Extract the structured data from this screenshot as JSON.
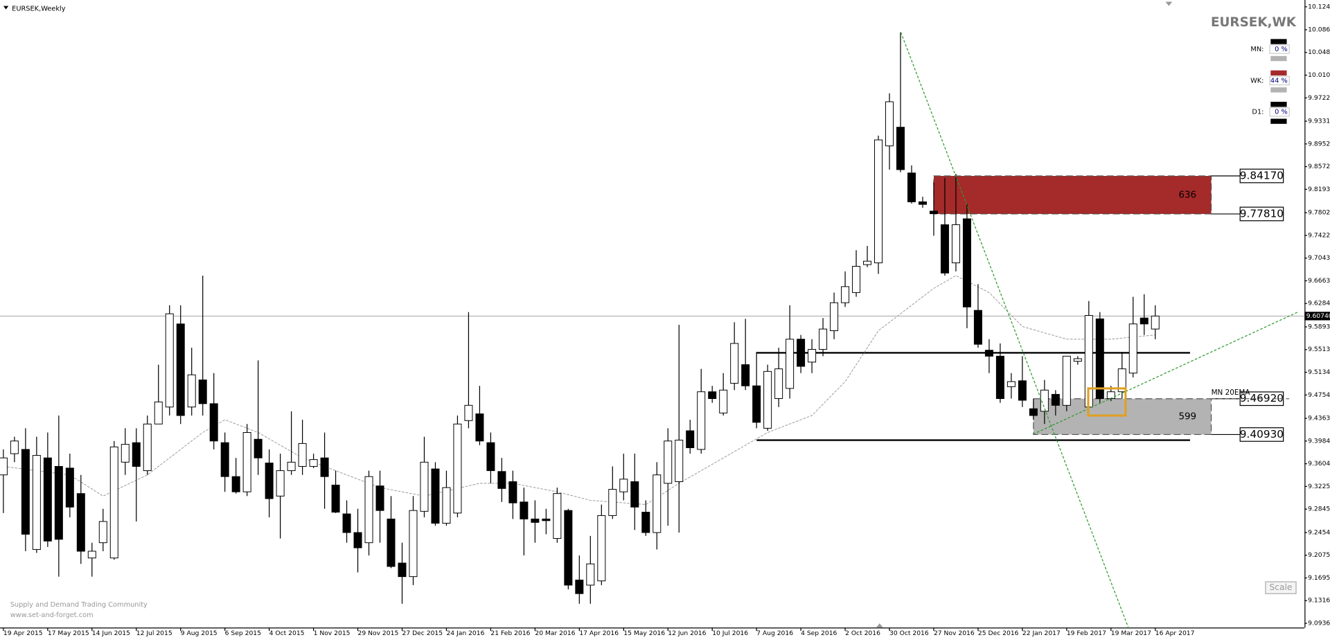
{
  "chart_data": {
    "type": "candlestick",
    "title": "EURSEK,Weekly",
    "symbol_badge": "EURSEK,WK",
    "watermark": [
      "Supply and Demand Trading Community",
      "www.set-and-forget.com"
    ],
    "scale_button": "Scale",
    "categories": [
      "19 Apr 2015",
      null,
      null,
      null,
      "17 May 2015",
      null,
      null,
      null,
      "14 Jun 2015",
      null,
      null,
      null,
      "12 Jul 2015",
      null,
      null,
      null,
      "9 Aug 2015",
      null,
      null,
      null,
      "6 Sep 2015",
      null,
      null,
      null,
      "4 Oct 2015",
      null,
      null,
      null,
      "1 Nov 2015",
      null,
      null,
      null,
      "29 Nov 2015",
      null,
      null,
      null,
      "27 Dec 2015",
      null,
      null,
      null,
      "24 Jan 2016",
      null,
      null,
      null,
      "21 Feb 2016",
      null,
      null,
      null,
      "20 Mar 2016",
      null,
      null,
      null,
      "17 Apr 2016",
      null,
      null,
      null,
      "15 May 2016",
      null,
      null,
      null,
      "12 Jun 2016",
      null,
      null,
      null,
      "10 Jul 2016",
      null,
      null,
      null,
      "7 Aug 2016",
      null,
      null,
      null,
      "4 Sep 2016",
      null,
      null,
      null,
      "2 Oct 2016",
      null,
      null,
      null,
      "30 Oct 2016",
      null,
      null,
      null,
      "27 Nov 2016",
      null,
      null,
      null,
      "25 Dec 2016",
      null,
      null,
      null,
      "22 Jan 2017",
      null,
      null,
      null,
      "19 Feb 2017",
      null,
      null,
      null,
      "19 Mar 2017",
      null,
      null,
      null,
      "16 Apr 2017"
    ],
    "open": [
      9.3418,
      9.3773,
      9.3844,
      9.2171,
      9.3702,
      9.356,
      9.3532,
      9.3106,
      9.2029,
      9.2284,
      9.2029,
      9.3631,
      9.3957,
      9.3489,
      9.4269,
      9.4553,
      9.5942,
      9.4553,
      9.5006,
      9.4609,
      9.3957,
      9.339,
      9.3135,
      9.4014,
      9.3617,
      9.3064,
      9.3489,
      9.356,
      9.356,
      9.3702,
      9.3248,
      9.2766,
      9.2454,
      9.2284,
      9.3234,
      9.2681,
      9.1944,
      9.1717,
      9.2809,
      9.3518,
      9.261,
      9.278,
      9.4326,
      9.4439,
      9.3957,
      9.3475,
      9.3305,
      9.2965,
      9.2681,
      9.2681,
      9.2355,
      9.2823,
      9.166,
      9.1575,
      9.1646,
      9.2738,
      9.3135,
      9.3305,
      9.2795,
      9.2454,
      9.3277,
      9.3305,
      9.4156,
      9.3844,
      9.4808,
      9.4453,
      9.495,
      9.5261,
      9.4907,
      9.4198,
      9.4694,
      9.4864,
      9.5687,
      9.5304,
      9.5517,
      9.5829,
      9.6297,
      9.6467,
      9.6934,
      9.6963,
      9.8919,
      9.9231,
      9.8466,
      9.7984,
      9.7828,
      9.7601,
      9.6963,
      9.77,
      9.6169,
      9.5503,
      9.5403,
      9.4893,
      9.4992,
      9.4524,
      9.4482,
      9.4765,
      9.4581,
      9.5318,
      9.4553,
      9.6027,
      9.4694,
      9.4808,
      9.512,
      9.6041,
      9.5857
    ],
    "high": [
      9.3844,
      9.4056,
      9.4198,
      9.4056,
      9.4127,
      9.4411,
      9.3773,
      9.3418,
      9.2284,
      9.2851,
      9.3985,
      9.4198,
      9.4198,
      9.4411,
      9.5261,
      9.6254,
      9.6254,
      9.5545,
      9.675,
      9.512,
      9.4127,
      9.3702,
      9.4269,
      9.5332,
      9.3844,
      9.3773,
      9.4482,
      9.434,
      9.3773,
      9.4127,
      9.3489,
      9.2993,
      9.2851,
      9.3489,
      9.3489,
      9.3064,
      9.2284,
      9.3064,
      9.4056,
      9.3631,
      9.3489,
      9.4411,
      9.614,
      9.4907,
      9.4127,
      9.3702,
      9.3489,
      9.3206,
      9.2993,
      9.2851,
      9.3206,
      9.2851,
      9.2071,
      9.2398,
      9.2922,
      9.356,
      9.3773,
      9.3773,
      9.2993,
      9.3631,
      9.4198,
      9.5928,
      9.434,
      9.5191,
      9.4907,
      9.512,
      9.597,
      9.6027,
      9.5474,
      9.5261,
      9.5545,
      9.6254,
      9.5758,
      9.5687,
      9.6041,
      9.6467,
      9.6821,
      9.7175,
      9.7246,
      9.909,
      9.9798,
      10.0819,
      9.8593,
      9.8069,
      9.831,
      9.8381,
      9.8452,
      9.7955,
      9.6608,
      9.5687,
      9.5616,
      9.512,
      9.5403,
      9.4694,
      9.5006,
      9.4836,
      9.5403,
      9.5403,
      9.6325,
      9.614,
      9.4907,
      9.5474,
      9.6396,
      9.6438,
      9.6254
    ],
    "low": [
      9.278,
      9.3631,
      9.2142,
      9.2114,
      9.2213,
      9.1717,
      9.2709,
      9.193,
      9.1717,
      9.2142,
      9.2001,
      9.3418,
      9.2639,
      9.3418,
      9.4269,
      9.4411,
      9.4269,
      9.4411,
      9.4411,
      9.3844,
      9.3135,
      9.3106,
      9.3064,
      9.3418,
      9.2709,
      9.2355,
      9.3418,
      9.3418,
      9.3532,
      9.2851,
      9.278,
      9.2284,
      9.1788,
      9.2071,
      9.2284,
      9.1859,
      9.1263,
      9.1575,
      9.2709,
      9.2568,
      9.2568,
      9.2709,
      9.4198,
      9.3915,
      9.3277,
      9.2965,
      9.2681,
      9.2071,
      9.2284,
      9.2426,
      9.2284,
      9.1504,
      9.1263,
      9.1263,
      9.1575,
      9.2681,
      9.2993,
      9.2497,
      9.2398,
      9.2171,
      9.2568,
      9.2454,
      9.3773,
      9.3773,
      9.4623,
      9.4411,
      9.4836,
      9.4836,
      9.4198,
      9.4156,
      9.4553,
      9.4694,
      9.512,
      9.512,
      9.5403,
      9.5687,
      9.6226,
      9.6396,
      9.6892,
      9.6779,
      9.8522,
      9.848,
      9.7955,
      9.7884,
      9.7417,
      9.675,
      9.6821,
      9.5871,
      9.5545,
      9.512,
      9.4623,
      9.4694,
      9.4553,
      9.434,
      9.4269,
      9.4411,
      9.4482,
      9.5261,
      9.4482,
      9.4623,
      9.4652,
      9.4694,
      9.5049,
      9.5758,
      9.5687
    ],
    "close": [
      9.3702,
      9.3985,
      9.2426,
      9.3744,
      9.2312,
      9.2341,
      9.288,
      9.2142,
      9.2142,
      9.2639,
      9.3886,
      9.3929,
      9.356,
      9.4269,
      9.4638,
      9.6112,
      9.4411,
      9.5091,
      9.4609,
      9.3985,
      9.339,
      9.3135,
      9.4127,
      9.3702,
      9.3021,
      9.3489,
      9.3631,
      9.3943,
      9.3674,
      9.339,
      9.2795,
      9.2454,
      9.2199,
      9.339,
      9.2823,
      9.1887,
      9.1717,
      9.2823,
      9.3631,
      9.261,
      9.3206,
      9.4269,
      9.4581,
      9.3985,
      9.3489,
      9.3191,
      9.295,
      9.2681,
      9.2624,
      9.2653,
      9.3106,
      9.1575,
      9.1433,
      9.193,
      9.2738,
      9.3177,
      9.3347,
      9.288,
      9.2454,
      9.3418,
      9.3985,
      9.4,
      9.3872,
      9.4808,
      9.4694,
      9.4836,
      9.5616,
      9.4907,
      9.4297,
      9.5148,
      9.5191,
      9.5687,
      9.5233,
      9.5517,
      9.5857,
      9.6297,
      9.6566,
      9.6906,
      9.6991,
      9.9019,
      9.9657,
      9.8522,
      9.7984,
      9.7941,
      9.7785,
      9.6793,
      9.7601,
      9.6226,
      9.5602,
      9.5403,
      9.4694,
      9.4978,
      9.4666,
      9.4411,
      9.4836,
      9.4581,
      9.5403,
      9.5361,
      9.6084,
      9.4694,
      9.4808,
      9.5191,
      9.5942,
      9.5942,
      9.6074
    ],
    "up_color": "#ffffff",
    "down_color": "#000000",
    "moving_average": {
      "color": "#999999",
      "x_index": [
        0,
        6,
        9,
        13,
        18,
        20,
        23,
        27,
        31,
        34,
        38,
        43,
        46,
        50,
        53,
        58,
        61,
        65,
        69,
        73,
        76,
        79,
        84,
        86,
        89,
        92,
        96,
        100,
        104
      ],
      "values": [
        9.356,
        9.3418,
        9.3064,
        9.3418,
        9.4127,
        9.434,
        9.4127,
        9.3702,
        9.3418,
        9.3206,
        9.3064,
        9.3277,
        9.3277,
        9.3135,
        9.2993,
        9.2922,
        9.3277,
        9.3702,
        9.4127,
        9.4411,
        9.4978,
        9.5829,
        9.6537,
        9.675,
        9.6467,
        9.5899,
        9.5687,
        9.5687,
        9.5758
      ]
    },
    "zones": [
      {
        "start_index": 84,
        "values": [
          9.8417,
          9.7781
        ],
        "labels": [
          "9.84170",
          "9.77810"
        ],
        "text": "636",
        "color": "#a52a2a"
      },
      {
        "start_index": 93,
        "values": [
          9.4692,
          9.4093
        ],
        "labels": [
          "9.46920",
          "9.40930"
        ],
        "text": "599",
        "color": "#b3b3b3"
      }
    ],
    "annotation": {
      "text": "MN 20EMA",
      "value": 9.4692
    },
    "current_price": {
      "value": 9.6074,
      "label": "9.60740"
    },
    "strength": [
      {
        "name": "MN:",
        "value": 0,
        "label": "0 %",
        "colors": [
          "#000000",
          "#b3b3b3"
        ]
      },
      {
        "name": "WK:",
        "value": 44,
        "label": "44 %",
        "colors": [
          "#a52a2a",
          "#b3b3b3"
        ]
      },
      {
        "name": "D1:",
        "value": 0,
        "label": "0 %",
        "colors": [
          "#000000",
          "#000000"
        ]
      }
    ],
    "ylim": [
      9.09365,
      10.12445
    ],
    "yticks": [
      10.12445,
      {
        "value": 10.0861,
        "label": "10.08610"
      },
      10.04815,
      {
        "value": 10.0102,
        "label": "10.01020"
      },
      9.97225,
      9.93315,
      {
        "value": 9.8952,
        "label": "9.89520"
      },
      9.85725,
      {
        "value": 9.8193,
        "label": "9.81930"
      },
      {
        "value": 9.7802,
        "label": "9.78020"
      },
      9.74225,
      {
        "value": 9.7043,
        "label": "9.70430"
      },
      9.66635,
      {
        "value": 9.6284,
        "label": "9.62840"
      },
      {
        "value": 9.5893,
        "label": "9.58930"
      },
      9.55135,
      {
        "value": 9.5134,
        "label": "9.51340"
      },
      9.47545,
      9.43635,
      {
        "value": 9.3984,
        "label": "9.39840"
      },
      9.36045,
      {
        "value": 9.3225,
        "label": "9.32250"
      },
      9.28455,
      9.24545,
      {
        "value": 9.2075,
        "label": "9.20750"
      },
      9.16955,
      {
        "value": 9.1316,
        "label": "9.13160"
      },
      9.09365
    ]
  }
}
